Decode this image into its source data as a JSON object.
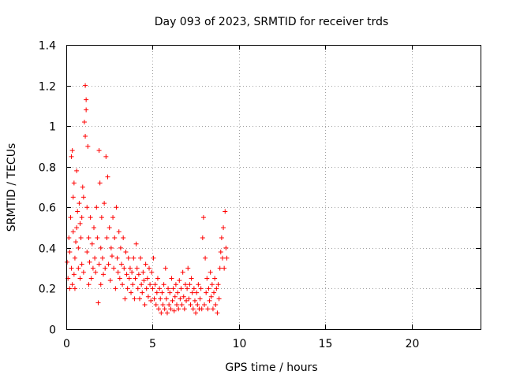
{
  "chart_data": {
    "type": "scatter",
    "title": "Day 093 of 2023, SRMTID for receiver trds",
    "xlabel": "GPS time / hours",
    "ylabel": "SRMTID / TECUs",
    "xlim": [
      0,
      24
    ],
    "ylim": [
      0,
      1.4
    ],
    "xticks": [
      0,
      5,
      10,
      15,
      20
    ],
    "yticks": [
      0,
      0.2,
      0.4,
      0.6,
      0.8,
      1,
      1.2,
      1.4
    ],
    "xtick_labels": [
      "0",
      "5",
      "10",
      "15",
      "20"
    ],
    "ytick_labels": [
      "0",
      "0.2",
      "0.4",
      "0.6",
      "0.8",
      "1",
      "1.2",
      "1.4"
    ],
    "grid": true,
    "marker": "+",
    "color": "#ff0000",
    "series": [
      {
        "name": "SRMTID",
        "points": [
          [
            0.05,
            0.33
          ],
          [
            0.1,
            0.25
          ],
          [
            0.15,
            0.45
          ],
          [
            0.2,
            0.2
          ],
          [
            0.2,
            0.38
          ],
          [
            0.25,
            0.55
          ],
          [
            0.3,
            0.85
          ],
          [
            0.3,
            0.3
          ],
          [
            0.35,
            0.88
          ],
          [
            0.35,
            0.22
          ],
          [
            0.4,
            0.48
          ],
          [
            0.4,
            0.65
          ],
          [
            0.45,
            0.72
          ],
          [
            0.45,
            0.27
          ],
          [
            0.5,
            0.35
          ],
          [
            0.5,
            0.2
          ],
          [
            0.55,
            0.43
          ],
          [
            0.6,
            0.78
          ],
          [
            0.6,
            0.5
          ],
          [
            0.65,
            0.58
          ],
          [
            0.7,
            0.3
          ],
          [
            0.7,
            0.4
          ],
          [
            0.75,
            0.62
          ],
          [
            0.8,
            0.25
          ],
          [
            0.8,
            0.52
          ],
          [
            0.85,
            0.45
          ],
          [
            0.9,
            0.32
          ],
          [
            0.9,
            0.55
          ],
          [
            0.95,
            0.7
          ],
          [
            1.0,
            0.65
          ],
          [
            1.0,
            0.28
          ],
          [
            1.05,
            1.02
          ],
          [
            1.1,
            1.2
          ],
          [
            1.1,
            0.95
          ],
          [
            1.15,
            1.13
          ],
          [
            1.15,
            1.08
          ],
          [
            1.2,
            0.6
          ],
          [
            1.2,
            0.38
          ],
          [
            1.25,
            0.9
          ],
          [
            1.3,
            0.22
          ],
          [
            1.3,
            0.45
          ],
          [
            1.35,
            0.33
          ],
          [
            1.4,
            0.55
          ],
          [
            1.45,
            0.25
          ],
          [
            1.5,
            0.42
          ],
          [
            1.55,
            0.3
          ],
          [
            1.6,
            0.5
          ],
          [
            1.65,
            0.35
          ],
          [
            1.7,
            0.28
          ],
          [
            1.75,
            0.6
          ],
          [
            1.8,
            0.45
          ],
          [
            1.85,
            0.13
          ],
          [
            1.9,
            0.88
          ],
          [
            1.9,
            0.32
          ],
          [
            1.95,
            0.72
          ],
          [
            2.0,
            0.4
          ],
          [
            2.0,
            0.22
          ],
          [
            2.05,
            0.55
          ],
          [
            2.1,
            0.35
          ],
          [
            2.15,
            0.27
          ],
          [
            2.2,
            0.62
          ],
          [
            2.25,
            0.3
          ],
          [
            2.3,
            0.85
          ],
          [
            2.35,
            0.45
          ],
          [
            2.4,
            0.75
          ],
          [
            2.45,
            0.32
          ],
          [
            2.5,
            0.5
          ],
          [
            2.55,
            0.24
          ],
          [
            2.6,
            0.4
          ],
          [
            2.65,
            0.36
          ],
          [
            2.7,
            0.55
          ],
          [
            2.75,
            0.3
          ],
          [
            2.8,
            0.45
          ],
          [
            2.85,
            0.2
          ],
          [
            2.9,
            0.6
          ],
          [
            2.95,
            0.35
          ],
          [
            3.0,
            0.28
          ],
          [
            3.05,
            0.48
          ],
          [
            3.1,
            0.25
          ],
          [
            3.15,
            0.4
          ],
          [
            3.2,
            0.32
          ],
          [
            3.25,
            0.22
          ],
          [
            3.3,
            0.45
          ],
          [
            3.35,
            0.3
          ],
          [
            3.4,
            0.15
          ],
          [
            3.45,
            0.38
          ],
          [
            3.5,
            0.27
          ],
          [
            3.55,
            0.2
          ],
          [
            3.6,
            0.35
          ],
          [
            3.65,
            0.25
          ],
          [
            3.7,
            0.3
          ],
          [
            3.75,
            0.18
          ],
          [
            3.8,
            0.28
          ],
          [
            3.85,
            0.22
          ],
          [
            3.9,
            0.35
          ],
          [
            3.95,
            0.15
          ],
          [
            4.0,
            0.25
          ],
          [
            4.05,
            0.42
          ],
          [
            4.1,
            0.3
          ],
          [
            4.15,
            0.2
          ],
          [
            4.2,
            0.27
          ],
          [
            4.25,
            0.15
          ],
          [
            4.3,
            0.35
          ],
          [
            4.35,
            0.22
          ],
          [
            4.4,
            0.18
          ],
          [
            4.45,
            0.28
          ],
          [
            4.5,
            0.24
          ],
          [
            4.55,
            0.12
          ],
          [
            4.6,
            0.32
          ],
          [
            4.65,
            0.2
          ],
          [
            4.7,
            0.25
          ],
          [
            4.75,
            0.16
          ],
          [
            4.8,
            0.3
          ],
          [
            4.85,
            0.22
          ],
          [
            4.9,
            0.14
          ],
          [
            4.95,
            0.28
          ],
          [
            5.0,
            0.2
          ],
          [
            5.05,
            0.35
          ],
          [
            5.1,
            0.15
          ],
          [
            5.15,
            0.22
          ],
          [
            5.2,
            0.12
          ],
          [
            5.25,
            0.18
          ],
          [
            5.3,
            0.25
          ],
          [
            5.35,
            0.1
          ],
          [
            5.4,
            0.2
          ],
          [
            5.45,
            0.15
          ],
          [
            5.5,
            0.08
          ],
          [
            5.55,
            0.18
          ],
          [
            5.6,
            0.12
          ],
          [
            5.65,
            0.22
          ],
          [
            5.7,
            0.1
          ],
          [
            5.75,
            0.3
          ],
          [
            5.8,
            0.15
          ],
          [
            5.85,
            0.08
          ],
          [
            5.9,
            0.2
          ],
          [
            5.95,
            0.12
          ],
          [
            6.0,
            0.18
          ],
          [
            6.05,
            0.1
          ],
          [
            6.1,
            0.25
          ],
          [
            6.15,
            0.14
          ],
          [
            6.2,
            0.2
          ],
          [
            6.25,
            0.09
          ],
          [
            6.3,
            0.16
          ],
          [
            6.35,
            0.22
          ],
          [
            6.4,
            0.12
          ],
          [
            6.45,
            0.18
          ],
          [
            6.5,
            0.1
          ],
          [
            6.55,
            0.24
          ],
          [
            6.6,
            0.15
          ],
          [
            6.65,
            0.2
          ],
          [
            6.7,
            0.12
          ],
          [
            6.75,
            0.28
          ],
          [
            6.8,
            0.16
          ],
          [
            6.85,
            0.1
          ],
          [
            6.9,
            0.22
          ],
          [
            6.95,
            0.14
          ],
          [
            7.0,
            0.2
          ],
          [
            7.05,
            0.3
          ],
          [
            7.1,
            0.15
          ],
          [
            7.15,
            0.22
          ],
          [
            7.2,
            0.12
          ],
          [
            7.25,
            0.25
          ],
          [
            7.3,
            0.18
          ],
          [
            7.35,
            0.1
          ],
          [
            7.4,
            0.2
          ],
          [
            7.45,
            0.14
          ],
          [
            7.5,
            0.08
          ],
          [
            7.55,
            0.18
          ],
          [
            7.6,
            0.12
          ],
          [
            7.65,
            0.22
          ],
          [
            7.7,
            0.1
          ],
          [
            7.75,
            0.15
          ],
          [
            7.8,
            0.2
          ],
          [
            7.85,
            0.1
          ],
          [
            7.9,
            0.45
          ],
          [
            7.95,
            0.55
          ],
          [
            8.0,
            0.12
          ],
          [
            8.05,
            0.35
          ],
          [
            8.1,
            0.18
          ],
          [
            8.15,
            0.25
          ],
          [
            8.2,
            0.1
          ],
          [
            8.25,
            0.2
          ],
          [
            8.3,
            0.14
          ],
          [
            8.35,
            0.28
          ],
          [
            8.4,
            0.16
          ],
          [
            8.45,
            0.22
          ],
          [
            8.5,
            0.1
          ],
          [
            8.55,
            0.18
          ],
          [
            8.6,
            0.25
          ],
          [
            8.65,
            0.12
          ],
          [
            8.7,
            0.2
          ],
          [
            8.75,
            0.08
          ],
          [
            8.8,
            0.22
          ],
          [
            8.85,
            0.15
          ],
          [
            8.9,
            0.3
          ],
          [
            8.95,
            0.38
          ],
          [
            9.0,
            0.45
          ],
          [
            9.05,
            0.35
          ],
          [
            9.1,
            0.5
          ],
          [
            9.15,
            0.3
          ],
          [
            9.2,
            0.58
          ],
          [
            9.25,
            0.4
          ],
          [
            9.3,
            0.35
          ]
        ]
      }
    ]
  }
}
